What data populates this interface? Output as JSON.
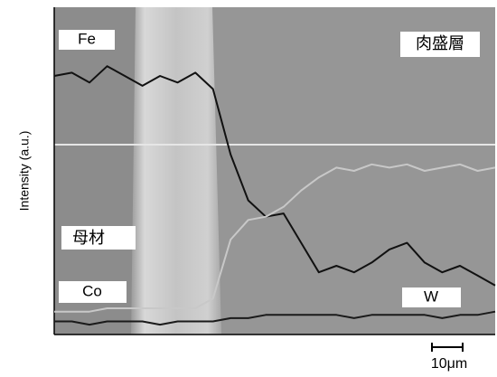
{
  "chart_data": {
    "type": "line",
    "y_label": "Intensity (a.u.)",
    "annotations": [
      "母材",
      "肉盛層"
    ],
    "scale_bar": "10μm",
    "xlim": [
      0,
      100
    ],
    "ylim": [
      0,
      100
    ],
    "x": [
      0,
      4,
      8,
      12,
      16,
      20,
      24,
      28,
      32,
      36,
      40,
      44,
      48,
      52,
      56,
      60,
      64,
      68,
      72,
      76,
      80,
      84,
      88,
      92,
      96,
      100
    ],
    "series": [
      {
        "name": "Fe",
        "color": "#111111",
        "values": [
          79,
          80,
          77,
          82,
          79,
          76,
          79,
          77,
          80,
          75,
          55,
          41,
          36,
          37,
          28,
          19,
          21,
          19,
          22,
          26,
          28,
          22,
          19,
          21,
          18,
          15
        ]
      },
      {
        "name": "Co",
        "color": "#1a1a1a",
        "values": [
          4,
          4,
          3,
          4,
          4,
          4,
          3,
          4,
          4,
          4,
          5,
          5,
          6,
          6,
          6,
          6,
          6,
          5,
          6,
          6,
          6,
          6,
          5,
          6,
          6,
          7
        ]
      },
      {
        "name": "W",
        "color": "#c8c8c8",
        "values": [
          7,
          7,
          7,
          8,
          8,
          8,
          8,
          8,
          8,
          11,
          29,
          35,
          36,
          39,
          44,
          48,
          51,
          50,
          52,
          51,
          52,
          50,
          51,
          52,
          50,
          51
        ]
      }
    ]
  }
}
